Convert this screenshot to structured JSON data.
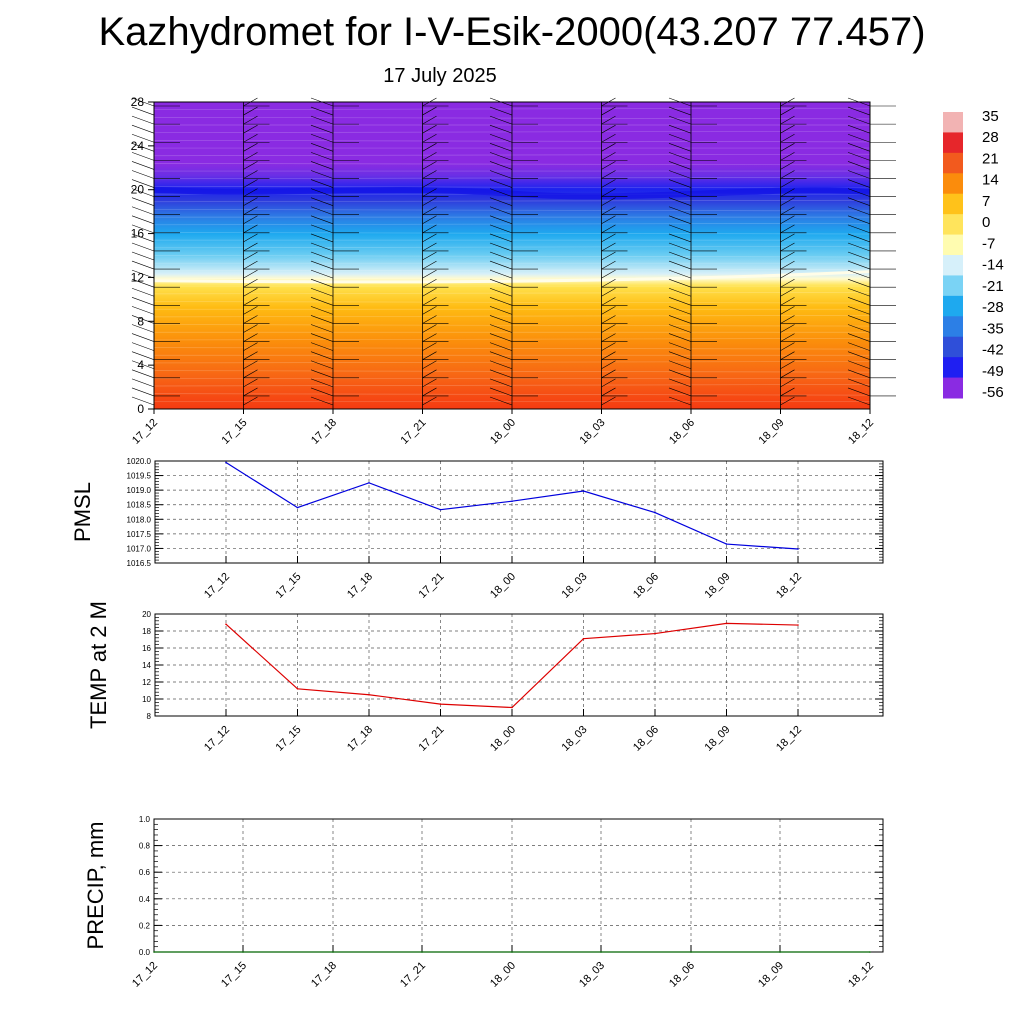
{
  "title": "Kazhydromet for I-V-Esik-2000(43.207 77.457)",
  "subtitle": "17 July 2025",
  "chart_data": [
    {
      "type": "heatmap",
      "title": "Kazhydromet for I-V-Esik-2000(43.207 77.457)",
      "subtitle": "17 July 2025",
      "x_ticks": [
        "17_12",
        "17_15",
        "17_18",
        "17_21",
        "18_00",
        "18_03",
        "18_06",
        "18_09",
        "18_12"
      ],
      "y_ticks": [
        0,
        4,
        8,
        12,
        16,
        20,
        24,
        28
      ],
      "ylim": [
        0,
        28
      ],
      "colorbar_labels": [
        35,
        28,
        21,
        14,
        7,
        0,
        -7,
        -14,
        -21,
        -28,
        -35,
        -42,
        -49,
        -56
      ],
      "colorbar_colors": [
        "#f2b3b3",
        "#e6262b",
        "#f25a1e",
        "#fb8c0c",
        "#ffc21a",
        "#ffe45c",
        "#fffcb0",
        "#d6f0fa",
        "#7ad3f5",
        "#1ea9ef",
        "#2c7fe6",
        "#2f4fd9",
        "#1f1ff2",
        "#8a2be2"
      ],
      "freezing_level_approx": 11.8,
      "tropopause_level_approx": 20,
      "wind_barbs": true
    },
    {
      "type": "line",
      "ylabel": "PMSL",
      "categories": [
        "17_12",
        "17_15",
        "17_18",
        "17_21",
        "18_00",
        "18_03",
        "18_06",
        "18_09",
        "18_12"
      ],
      "y_ticks": [
        "1016.5",
        "1017.0",
        "1017.5",
        "1018.0",
        "1018.5",
        "1019.0",
        "1019.5",
        "1020.0"
      ],
      "ylim": [
        1016.5,
        1020.0
      ],
      "series": [
        {
          "values": [
            1019.95,
            1018.4,
            1019.25,
            1018.33,
            1018.62,
            1018.97,
            1018.23,
            1017.15,
            1016.98
          ],
          "color": "#0000dd"
        }
      ]
    },
    {
      "type": "line",
      "ylabel": "TEMP at 2 M",
      "categories": [
        "17_12",
        "17_15",
        "17_18",
        "17_21",
        "18_00",
        "18_03",
        "18_06",
        "18_09",
        "18_12"
      ],
      "y_ticks": [
        "8",
        "10",
        "12",
        "14",
        "16",
        "18",
        "20"
      ],
      "ylim": [
        8,
        20
      ],
      "series": [
        {
          "values": [
            18.8,
            11.2,
            10.5,
            9.4,
            9.0,
            17.1,
            17.7,
            18.9,
            18.7
          ],
          "color": "#dd0000"
        }
      ]
    },
    {
      "type": "line",
      "ylabel": "PRECIP, mm",
      "x_ticks": [
        "17_12",
        "17_15",
        "17_18",
        "17_21",
        "18_00",
        "18_03",
        "18_06",
        "18_09",
        "18_12"
      ],
      "y_ticks": [
        "0.0",
        "0.2",
        "0.4",
        "0.6",
        "0.8",
        "1.0"
      ],
      "ylim": [
        0,
        1
      ],
      "series": [
        {
          "values": [
            0,
            0,
            0,
            0,
            0,
            0,
            0,
            0,
            0
          ],
          "color": "#006400"
        }
      ]
    }
  ]
}
